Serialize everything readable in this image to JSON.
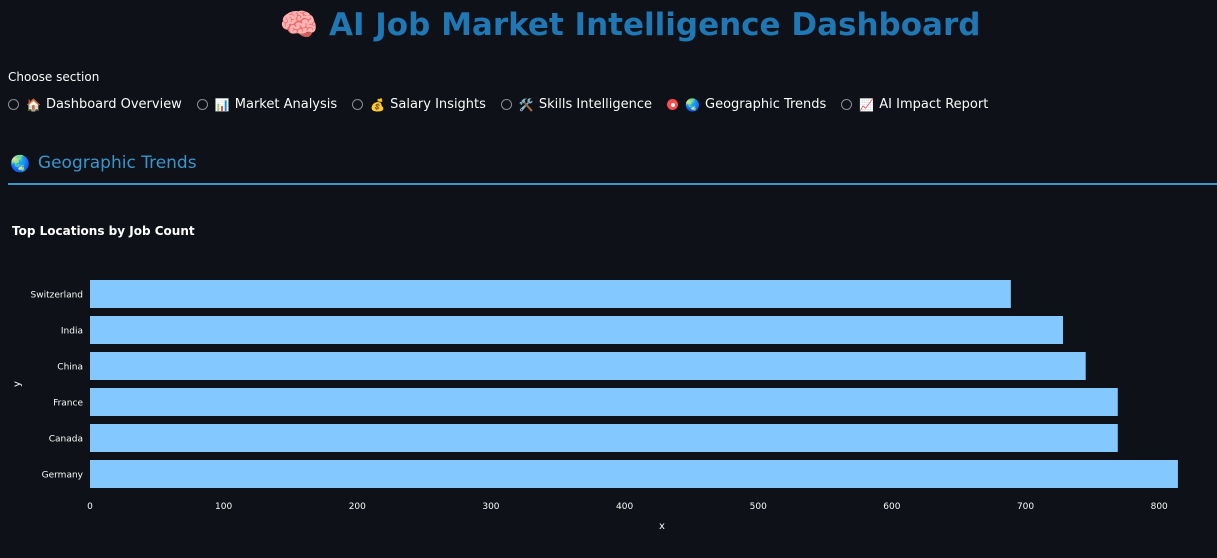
{
  "app": {
    "title_icon": "🧠",
    "title": "AI Job Market Intelligence Dashboard"
  },
  "nav": {
    "label": "Choose section",
    "options": [
      {
        "icon": "🏠",
        "label": "Dashboard Overview",
        "selected": false
      },
      {
        "icon": "📊",
        "label": "Market Analysis",
        "selected": false
      },
      {
        "icon": "💰",
        "label": "Salary Insights",
        "selected": false
      },
      {
        "icon": "🛠️",
        "label": "Skills Intelligence",
        "selected": false
      },
      {
        "icon": "🌏",
        "label": "Geographic Trends",
        "selected": true
      },
      {
        "icon": "📈",
        "label": "AI Impact Report",
        "selected": false
      }
    ]
  },
  "section": {
    "icon": "🌏",
    "header": "Geographic Trends"
  },
  "colors": {
    "accent": "#1f77b4",
    "header": "#3a95cc",
    "bar": "#83c9ff",
    "radio_selected": "#ff4b4b",
    "background": "#0e1117"
  },
  "chart_data": {
    "type": "bar",
    "orientation": "horizontal",
    "title": "Top Locations by Job Count",
    "xlabel": "x",
    "ylabel": "y",
    "categories": [
      "Switzerland",
      "India",
      "China",
      "France",
      "Canada",
      "Germany"
    ],
    "values": [
      689,
      728,
      745,
      769,
      769,
      814
    ],
    "xlim": [
      0,
      830
    ],
    "xticks": [
      0,
      100,
      200,
      300,
      400,
      500,
      600,
      700,
      800
    ],
    "grid": false
  }
}
